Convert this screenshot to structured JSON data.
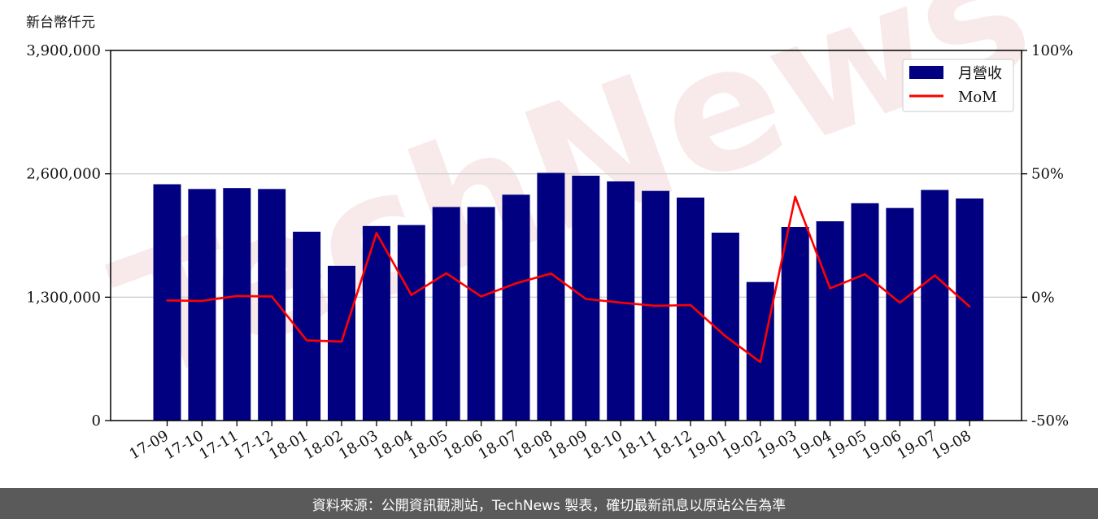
{
  "chart_data": {
    "type": "bar",
    "categories": [
      "17-09",
      "17-10",
      "17-11",
      "17-12",
      "18-01",
      "18-02",
      "18-03",
      "18-04",
      "18-05",
      "18-06",
      "18-07",
      "18-08",
      "18-09",
      "18-10",
      "18-11",
      "18-12",
      "19-01",
      "19-02",
      "19-03",
      "19-04",
      "19-05",
      "19-06",
      "19-07",
      "19-08"
    ],
    "series": [
      {
        "name": "月營收",
        "kind": "bar",
        "axis": "left",
        "color": "#000080",
        "values": [
          2490000,
          2440000,
          2450000,
          2440000,
          1990000,
          1630000,
          2050000,
          2060000,
          2250000,
          2250000,
          2380000,
          2610000,
          2580000,
          2520000,
          2420000,
          2350000,
          1980000,
          1460000,
          2040000,
          2100000,
          2290000,
          2240000,
          2430000,
          2340000
        ]
      },
      {
        "name": "MoM",
        "kind": "line",
        "axis": "right",
        "color": "#ff0000",
        "values": [
          -1.3,
          -1.5,
          0.5,
          0.3,
          -17.5,
          -18.0,
          26.0,
          0.9,
          9.7,
          0.3,
          5.6,
          9.6,
          -0.7,
          -2.2,
          -3.5,
          -3.2,
          -15.8,
          -26.3,
          40.7,
          3.6,
          9.3,
          -2.2,
          8.8,
          -3.8
        ]
      }
    ],
    "y_left": {
      "unit_label": "新台幣仟元",
      "ylim": [
        0,
        3900000
      ],
      "ticks": [
        "0",
        "1,300,000",
        "2,600,000",
        "3,900,000"
      ],
      "tick_values": [
        0,
        1300000,
        2600000,
        3900000
      ]
    },
    "y_right": {
      "ylim": [
        -50,
        100
      ],
      "ticks": [
        "-50%",
        "0%",
        "50%",
        "100%"
      ],
      "tick_values": [
        -50,
        0,
        50,
        100
      ]
    },
    "grid": "horizontal",
    "legend_position": "top-right",
    "watermark": "TechNews"
  },
  "footer": {
    "text": "資料來源：公開資訊觀測站，TechNews 製表，確切最新訊息以原站公告為準"
  }
}
